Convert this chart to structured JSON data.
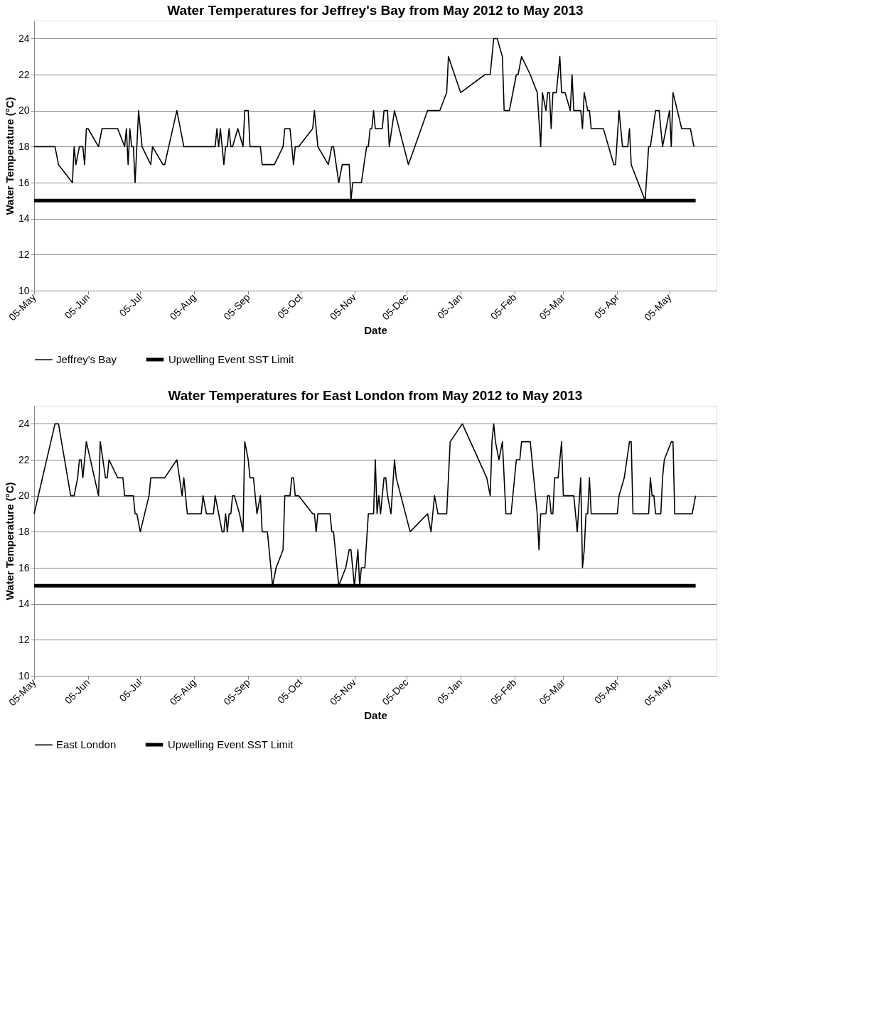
{
  "chart_data": [
    {
      "type": "line",
      "title": "Water Temperatures for Jeffrey's Bay from May 2012 to May 2013",
      "xlabel": "Date",
      "ylabel": "Water Temperature (°C)",
      "xlim": [
        "2012-05-05",
        "2013-06-01"
      ],
      "ylim": [
        10,
        25
      ],
      "yticks": [
        10,
        12,
        14,
        16,
        18,
        20,
        22,
        24
      ],
      "xticks": [
        {
          "value": "2012-05-05",
          "label": "05-May"
        },
        {
          "value": "2012-06-05",
          "label": "05-Jun"
        },
        {
          "value": "2012-07-05",
          "label": "05-Jul"
        },
        {
          "value": "2012-08-05",
          "label": "05-Aug"
        },
        {
          "value": "2012-09-05",
          "label": "05-Sep"
        },
        {
          "value": "2012-10-05",
          "label": "05-Oct"
        },
        {
          "value": "2012-11-05",
          "label": "05-Nov"
        },
        {
          "value": "2012-12-05",
          "label": "05-Dec"
        },
        {
          "value": "2013-01-05",
          "label": "05-Jan"
        },
        {
          "value": "2013-02-05",
          "label": "05-Feb"
        },
        {
          "value": "2013-03-05",
          "label": "05-Mar"
        },
        {
          "value": "2013-04-05",
          "label": "05-Apr"
        },
        {
          "value": "2013-05-05",
          "label": "05-May"
        }
      ],
      "grid": "y",
      "legend": "bottom",
      "line_style": "solid",
      "marker": "none",
      "series": [
        {
          "name": "Jeffrey's Bay",
          "color": "#000000",
          "x": [
            "2012-05-05",
            "2012-05-17",
            "2012-05-19",
            "2012-05-27",
            "2012-05-28",
            "2012-05-29",
            "2012-05-31",
            "2012-06-02",
            "2012-06-03",
            "2012-06-04",
            "2012-06-05",
            "2012-06-11",
            "2012-06-13",
            "2012-06-22",
            "2012-06-26",
            "2012-06-27",
            "2012-06-28",
            "2012-06-29",
            "2012-06-30",
            "2012-07-01",
            "2012-07-02",
            "2012-07-04",
            "2012-07-06",
            "2012-07-11",
            "2012-07-12",
            "2012-07-18",
            "2012-07-19",
            "2012-07-26",
            "2012-07-30",
            "2012-08-17",
            "2012-08-18",
            "2012-08-19",
            "2012-08-20",
            "2012-08-22",
            "2012-08-23",
            "2012-08-24",
            "2012-08-25",
            "2012-08-26",
            "2012-08-27",
            "2012-08-30",
            "2012-09-02",
            "2012-09-03",
            "2012-09-05",
            "2012-09-06",
            "2012-09-12",
            "2012-09-13",
            "2012-09-20",
            "2012-09-25",
            "2012-09-26",
            "2012-09-29",
            "2012-10-01",
            "2012-10-02",
            "2012-10-04",
            "2012-10-12",
            "2012-10-13",
            "2012-10-15",
            "2012-10-21",
            "2012-10-23",
            "2012-10-24",
            "2012-10-27",
            "2012-10-29",
            "2012-11-02",
            "2012-11-03",
            "2012-11-04",
            "2012-11-05",
            "2012-11-09",
            "2012-11-12",
            "2012-11-13",
            "2012-11-14",
            "2012-11-15",
            "2012-11-16",
            "2012-11-17",
            "2012-11-21",
            "2012-11-22",
            "2012-11-24",
            "2012-11-25",
            "2012-11-28",
            "2012-12-06",
            "2012-12-17",
            "2012-12-24",
            "2012-12-28",
            "2012-12-29",
            "2013-01-05",
            "2013-01-19",
            "2013-01-22",
            "2013-01-24",
            "2013-01-26",
            "2013-01-29",
            "2013-01-30",
            "2013-02-02",
            "2013-02-06",
            "2013-02-07",
            "2013-02-09",
            "2013-02-14",
            "2013-02-18",
            "2013-02-20",
            "2013-02-21",
            "2013-02-23",
            "2013-02-24",
            "2013-02-25",
            "2013-02-26",
            "2013-02-27",
            "2013-03-01",
            "2013-03-03",
            "2013-03-04",
            "2013-03-06",
            "2013-03-09",
            "2013-03-10",
            "2013-03-11",
            "2013-03-15",
            "2013-03-16",
            "2013-03-17",
            "2013-03-19",
            "2013-03-20",
            "2013-03-21",
            "2013-03-28",
            "2013-04-03",
            "2013-04-04",
            "2013-04-06",
            "2013-04-08",
            "2013-04-11",
            "2013-04-12",
            "2013-04-13",
            "2013-04-21",
            "2013-04-23",
            "2013-04-24",
            "2013-04-27",
            "2013-04-29",
            "2013-05-01",
            "2013-05-05",
            "2013-05-06",
            "2013-05-07",
            "2013-05-12",
            "2013-05-17",
            "2013-05-19"
          ],
          "values": [
            18,
            18,
            17,
            16,
            18,
            17,
            18,
            18,
            17,
            19,
            19,
            18,
            19,
            19,
            18,
            19,
            17,
            19,
            18,
            18,
            16,
            20,
            18,
            17,
            18,
            17,
            17,
            20,
            18,
            18,
            19,
            18,
            19,
            17,
            18,
            18,
            19,
            18,
            18,
            19,
            18,
            20,
            20,
            18,
            18,
            17,
            17,
            18,
            19,
            19,
            17,
            18,
            18,
            19,
            20,
            18,
            17,
            18,
            18,
            16,
            17,
            17,
            15,
            16,
            16,
            16,
            18,
            18,
            19,
            19,
            20,
            19,
            19,
            20,
            20,
            18,
            20,
            17,
            20,
            20,
            21,
            23,
            21,
            22,
            22,
            24,
            24,
            23,
            20,
            20,
            22,
            22,
            23,
            22,
            21,
            18,
            21,
            20,
            21,
            21,
            19,
            21,
            21,
            23,
            21,
            21,
            20,
            22,
            20,
            20,
            19,
            21,
            20,
            20,
            19,
            19,
            17,
            17,
            20,
            18,
            18,
            19,
            17,
            15,
            18,
            18,
            20,
            20,
            18,
            20,
            18,
            21,
            19,
            19,
            18
          ]
        },
        {
          "name": "Upwelling Event SST Limit",
          "color": "#000000",
          "x": [
            "2012-05-05",
            "2013-05-20"
          ],
          "values": [
            15,
            15
          ]
        }
      ]
    },
    {
      "type": "line",
      "title": "Water Temperatures for East London from May 2012 to May 2013",
      "xlabel": "Date",
      "ylabel": "Water Temperature (°C)",
      "xlim": [
        "2012-05-05",
        "2013-06-01"
      ],
      "ylim": [
        10,
        25
      ],
      "yticks": [
        10,
        12,
        14,
        16,
        18,
        20,
        22,
        24
      ],
      "xticks": [
        {
          "value": "2012-05-05",
          "label": "05-May"
        },
        {
          "value": "2012-06-05",
          "label": "05-Jun"
        },
        {
          "value": "2012-07-05",
          "label": "05-Jul"
        },
        {
          "value": "2012-08-05",
          "label": "05-Aug"
        },
        {
          "value": "2012-09-05",
          "label": "05-Sep"
        },
        {
          "value": "2012-10-05",
          "label": "05-Oct"
        },
        {
          "value": "2012-11-05",
          "label": "05-Nov"
        },
        {
          "value": "2012-12-05",
          "label": "05-Dec"
        },
        {
          "value": "2013-01-05",
          "label": "05-Jan"
        },
        {
          "value": "2013-02-05",
          "label": "05-Feb"
        },
        {
          "value": "2013-03-05",
          "label": "05-Mar"
        },
        {
          "value": "2013-04-05",
          "label": "05-Apr"
        },
        {
          "value": "2013-05-05",
          "label": "05-May"
        }
      ],
      "grid": "y",
      "legend": "bottom",
      "line_style": "solid",
      "marker": "none",
      "series": [
        {
          "name": "East London",
          "color": "#000000",
          "x": [
            "2012-05-05",
            "2012-05-17",
            "2012-05-19",
            "2012-05-26",
            "2012-05-28",
            "2012-05-30",
            "2012-05-31",
            "2012-06-01",
            "2012-06-02",
            "2012-06-04",
            "2012-06-11",
            "2012-06-12",
            "2012-06-15",
            "2012-06-16",
            "2012-06-17",
            "2012-06-22",
            "2012-06-25",
            "2012-06-26",
            "2012-07-01",
            "2012-07-02",
            "2012-07-03",
            "2012-07-05",
            "2012-07-10",
            "2012-07-11",
            "2012-07-19",
            "2012-07-26",
            "2012-07-29",
            "2012-07-30",
            "2012-08-01",
            "2012-08-09",
            "2012-08-10",
            "2012-08-12",
            "2012-08-16",
            "2012-08-17",
            "2012-08-19",
            "2012-08-21",
            "2012-08-22",
            "2012-08-23",
            "2012-08-24",
            "2012-08-25",
            "2012-08-26",
            "2012-08-27",
            "2012-08-28",
            "2012-08-31",
            "2012-09-02",
            "2012-09-03",
            "2012-09-05",
            "2012-09-06",
            "2012-09-08",
            "2012-09-10",
            "2012-09-12",
            "2012-09-13",
            "2012-09-15",
            "2012-09-16",
            "2012-09-19",
            "2012-09-21",
            "2012-09-25",
            "2012-09-26",
            "2012-09-29",
            "2012-09-30",
            "2012-10-01",
            "2012-10-02",
            "2012-10-04",
            "2012-10-12",
            "2012-10-13",
            "2012-10-14",
            "2012-10-15",
            "2012-10-22",
            "2012-10-23",
            "2012-10-24",
            "2012-10-27",
            "2012-10-31",
            "2012-11-02",
            "2012-11-03",
            "2012-11-05",
            "2012-11-07",
            "2012-11-08",
            "2012-11-09",
            "2012-11-11",
            "2012-11-13",
            "2012-11-16",
            "2012-11-17",
            "2012-11-18",
            "2012-11-19",
            "2012-11-20",
            "2012-11-22",
            "2012-11-23",
            "2012-11-24",
            "2012-11-26",
            "2012-11-28",
            "2012-11-29",
            "2012-12-07",
            "2012-12-17",
            "2012-12-19",
            "2012-12-21",
            "2012-12-23",
            "2012-12-28",
            "2012-12-30",
            "2013-01-06",
            "2013-01-20",
            "2013-01-22",
            "2013-01-23",
            "2013-01-24",
            "2013-01-25",
            "2013-01-27",
            "2013-01-29",
            "2013-01-31",
            "2013-02-03",
            "2013-02-06",
            "2013-02-08",
            "2013-02-09",
            "2013-02-14",
            "2013-02-18",
            "2013-02-19",
            "2013-02-20",
            "2013-02-23",
            "2013-02-24",
            "2013-02-25",
            "2013-02-26",
            "2013-02-27",
            "2013-02-28",
            "2013-03-02",
            "2013-03-04",
            "2013-03-05",
            "2013-03-11",
            "2013-03-13",
            "2013-03-15",
            "2013-03-16",
            "2013-03-17",
            "2013-03-18",
            "2013-03-19",
            "2013-03-20",
            "2013-03-21",
            "2013-04-05",
            "2013-04-06",
            "2013-04-09",
            "2013-04-12",
            "2013-04-13",
            "2013-04-14",
            "2013-04-23",
            "2013-04-24",
            "2013-04-25",
            "2013-04-26",
            "2013-04-27",
            "2013-04-30",
            "2013-05-01",
            "2013-05-02",
            "2013-05-06",
            "2013-05-07",
            "2013-05-08",
            "2013-05-18",
            "2013-05-20"
          ],
          "values": [
            19,
            24,
            24,
            20,
            20,
            21,
            22,
            22,
            21,
            23,
            20,
            23,
            21,
            21,
            22,
            21,
            21,
            20,
            20,
            19,
            19,
            18,
            20,
            21,
            21,
            22,
            20,
            21,
            19,
            19,
            20,
            19,
            19,
            20,
            19,
            18,
            18,
            19,
            18,
            19,
            19,
            20,
            20,
            19,
            18,
            23,
            22,
            21,
            21,
            19,
            20,
            18,
            18,
            18,
            15,
            16,
            17,
            20,
            20,
            21,
            21,
            20,
            20,
            19,
            19,
            18,
            19,
            19,
            18,
            18,
            15,
            16,
            17,
            17,
            15,
            17,
            15,
            16,
            16,
            19,
            19,
            22,
            19,
            20,
            19,
            21,
            21,
            20,
            19,
            22,
            21,
            18,
            19,
            18,
            20,
            19,
            19,
            23,
            24,
            21,
            20,
            23,
            24,
            23,
            22,
            23,
            19,
            19,
            22,
            22,
            23,
            23,
            19,
            17,
            19,
            19,
            20,
            20,
            19,
            19,
            21,
            21,
            23,
            20,
            20,
            18,
            21,
            16,
            17,
            19,
            19,
            21,
            19,
            19,
            20,
            21,
            23,
            23,
            19,
            19,
            21,
            20,
            20,
            19,
            19,
            21,
            22,
            23,
            23,
            19,
            19,
            20
          ]
        },
        {
          "name": "Upwelling Event SST Limit",
          "color": "#000000",
          "x": [
            "2012-05-05",
            "2013-05-20"
          ],
          "values": [
            15,
            15
          ]
        }
      ]
    }
  ]
}
